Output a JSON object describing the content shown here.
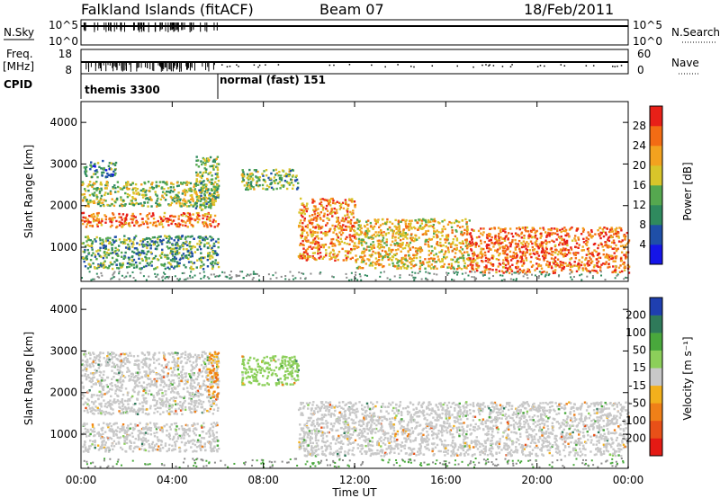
{
  "header": {
    "station": "Falkland Islands (fitACF)",
    "beam": "Beam 07",
    "date": "18/Feb/2011"
  },
  "nsky_panel": {
    "label": "N.Sky",
    "ticks_left": [
      "10^5",
      "10^0"
    ],
    "ticks_right": [
      "10^5",
      "10^0"
    ],
    "right_label": "N.Search"
  },
  "freq_panel": {
    "label_top": "Freq.",
    "label_unit": "[MHz]",
    "ticks_left": [
      "18",
      "8"
    ],
    "ticks_right": [
      "60",
      "0"
    ],
    "right_label": "Nave"
  },
  "cpid_panel": {
    "label": "CPID",
    "segments": [
      {
        "name": "themis 3300",
        "start_hour": 0.0,
        "end_hour": 6.0
      },
      {
        "name": "normal (fast) 151",
        "start_hour": 6.0,
        "end_hour": 24.0
      }
    ]
  },
  "time_axis": {
    "title": "Time UT",
    "ticks": [
      "00:00",
      "04:00",
      "08:00",
      "12:00",
      "16:00",
      "20:00",
      "00:00"
    ]
  },
  "range_axis": {
    "title": "Slant Range [km]",
    "ticks": [
      "1000",
      "2000",
      "3000",
      "4000"
    ]
  },
  "power_colorbar": {
    "title": "Power [dB]",
    "ticks": [
      "4",
      "8",
      "12",
      "16",
      "20",
      "24",
      "28"
    ],
    "colors": [
      "#1515e8",
      "#1f4fa8",
      "#2f8a5e",
      "#55a84f",
      "#d8c52a",
      "#f3a21f",
      "#f36c14",
      "#e82018"
    ]
  },
  "velocity_colorbar": {
    "title": "Velocity [m s⁻¹]",
    "ticks": [
      "200",
      "100",
      "50",
      "15",
      "-15",
      "-50",
      "-100",
      "-200"
    ],
    "colors": [
      "#1f3fb0",
      "#2f7a5a",
      "#49a83c",
      "#8ccf5a",
      "#c8c8c8",
      "#f2b01c",
      "#f08018",
      "#e85018",
      "#e41a14"
    ]
  },
  "chart_data": {
    "type": "heatmap",
    "x_range_hours": [
      0,
      24
    ],
    "y_range_km": [
      180,
      4500
    ],
    "power_scatter": [
      {
        "start_hour": 0.0,
        "end_hour": 6.0,
        "range_km": [
          1500,
          1850
        ],
        "level_db": 26
      },
      {
        "start_hour": 0.0,
        "end_hour": 6.0,
        "range_km": [
          2000,
          2600
        ],
        "level_db": 16
      },
      {
        "start_hour": 0.0,
        "end_hour": 1.5,
        "range_km": [
          2700,
          3100
        ],
        "level_db": 10
      },
      {
        "start_hour": 0.0,
        "end_hour": 6.0,
        "range_km": [
          500,
          1300
        ],
        "level_db": 12
      },
      {
        "start_hour": 5.0,
        "end_hour": 6.0,
        "range_km": [
          1900,
          3200
        ],
        "level_db": 14
      },
      {
        "start_hour": 7.0,
        "end_hour": 9.5,
        "range_km": [
          2400,
          2900
        ],
        "level_db": 14
      },
      {
        "start_hour": 9.5,
        "end_hour": 12.0,
        "range_km": [
          700,
          2200
        ],
        "level_db": 24
      },
      {
        "start_hour": 12.0,
        "end_hour": 17.0,
        "range_km": [
          500,
          1700
        ],
        "level_db": 20
      },
      {
        "start_hour": 17.0,
        "end_hour": 24.0,
        "range_km": [
          400,
          1500
        ],
        "level_db": 26
      }
    ],
    "velocity_scatter": [
      {
        "start_hour": 0.0,
        "end_hour": 6.0,
        "range_km": [
          1500,
          3000
        ],
        "velocity_ms": 0
      },
      {
        "start_hour": 0.0,
        "end_hour": 6.0,
        "range_km": [
          600,
          1300
        ],
        "velocity_ms": 0
      },
      {
        "start_hour": 5.5,
        "end_hour": 6.0,
        "range_km": [
          1900,
          3000
        ],
        "velocity_ms": -50
      },
      {
        "start_hour": 7.0,
        "end_hour": 9.5,
        "range_km": [
          2200,
          2900
        ],
        "velocity_ms": 30
      },
      {
        "start_hour": 9.5,
        "end_hour": 24.0,
        "range_km": [
          500,
          1800
        ],
        "velocity_ms": 0
      }
    ]
  }
}
